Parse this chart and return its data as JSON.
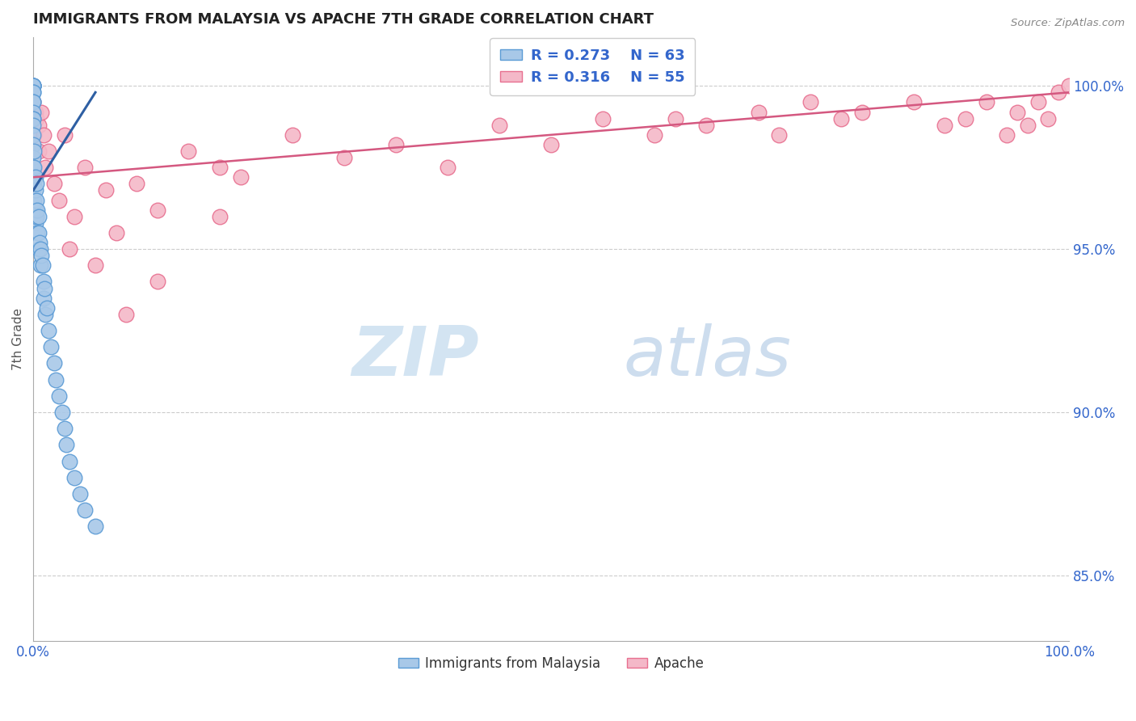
{
  "title": "IMMIGRANTS FROM MALAYSIA VS APACHE 7TH GRADE CORRELATION CHART",
  "source": "Source: ZipAtlas.com",
  "ylabel": "7th Grade",
  "ylabel_right_ticks": [
    85.0,
    90.0,
    95.0,
    100.0
  ],
  "legend_blue_r": "R = 0.273",
  "legend_blue_n": "N = 63",
  "legend_pink_r": "R = 0.316",
  "legend_pink_n": "N = 55",
  "legend_blue_label": "Immigrants from Malaysia",
  "legend_pink_label": "Apache",
  "blue_color": "#a8c8e8",
  "blue_edge": "#5b9bd5",
  "blue_line_color": "#2e5fa3",
  "pink_color": "#f4b8c8",
  "pink_edge": "#e87090",
  "pink_line_color": "#d45880",
  "blue_scatter_x": [
    0.0,
    0.0,
    0.0,
    0.0,
    0.0,
    0.0,
    0.0,
    0.0,
    0.0,
    0.0,
    0.0,
    0.0,
    0.0,
    0.0,
    0.0,
    0.0,
    0.0,
    0.0,
    0.0,
    0.0,
    0.0,
    0.0,
    0.0,
    0.1,
    0.1,
    0.1,
    0.1,
    0.1,
    0.2,
    0.2,
    0.2,
    0.2,
    0.3,
    0.3,
    0.3,
    0.4,
    0.4,
    0.5,
    0.5,
    0.5,
    0.6,
    0.7,
    0.7,
    0.8,
    0.9,
    1.0,
    1.0,
    1.1,
    1.2,
    1.3,
    1.5,
    1.7,
    2.0,
    2.2,
    2.5,
    2.8,
    3.0,
    3.2,
    3.5,
    4.0,
    4.5,
    5.0,
    6.0
  ],
  "blue_scatter_y": [
    100.0,
    100.0,
    100.0,
    100.0,
    100.0,
    99.8,
    99.8,
    99.5,
    99.5,
    99.2,
    99.0,
    99.0,
    98.8,
    98.5,
    98.2,
    97.8,
    97.5,
    97.2,
    97.0,
    97.0,
    96.8,
    96.5,
    96.2,
    98.0,
    97.5,
    97.0,
    96.5,
    96.0,
    97.2,
    96.8,
    96.2,
    95.8,
    97.0,
    96.5,
    96.0,
    96.2,
    95.5,
    96.0,
    95.5,
    95.0,
    95.2,
    95.0,
    94.5,
    94.8,
    94.5,
    94.0,
    93.5,
    93.8,
    93.0,
    93.2,
    92.5,
    92.0,
    91.5,
    91.0,
    90.5,
    90.0,
    89.5,
    89.0,
    88.5,
    88.0,
    87.5,
    87.0,
    86.5
  ],
  "pink_scatter_x": [
    0.0,
    0.0,
    0.0,
    0.1,
    0.2,
    0.3,
    0.5,
    0.5,
    0.8,
    1.0,
    1.2,
    1.5,
    2.0,
    2.5,
    3.0,
    4.0,
    5.0,
    7.0,
    8.0,
    10.0,
    12.0,
    15.0,
    18.0,
    20.0,
    25.0,
    30.0,
    35.0,
    40.0,
    45.0,
    50.0,
    55.0,
    60.0,
    62.0,
    65.0,
    70.0,
    72.0,
    75.0,
    78.0,
    80.0,
    85.0,
    88.0,
    90.0,
    92.0,
    94.0,
    95.0,
    96.0,
    97.0,
    98.0,
    99.0,
    100.0,
    3.5,
    6.0,
    9.0,
    12.0,
    18.0
  ],
  "pink_scatter_y": [
    100.0,
    99.5,
    99.0,
    98.5,
    99.2,
    99.0,
    98.8,
    98.0,
    99.2,
    98.5,
    97.5,
    98.0,
    97.0,
    96.5,
    98.5,
    96.0,
    97.5,
    96.8,
    95.5,
    97.0,
    96.2,
    98.0,
    97.5,
    97.2,
    98.5,
    97.8,
    98.2,
    97.5,
    98.8,
    98.2,
    99.0,
    98.5,
    99.0,
    98.8,
    99.2,
    98.5,
    99.5,
    99.0,
    99.2,
    99.5,
    98.8,
    99.0,
    99.5,
    98.5,
    99.2,
    98.8,
    99.5,
    99.0,
    99.8,
    100.0,
    95.0,
    94.5,
    93.0,
    94.0,
    96.0
  ],
  "blue_trend_x": [
    0.0,
    6.0
  ],
  "blue_trend_y": [
    96.8,
    99.8
  ],
  "pink_trend_x": [
    0.0,
    100.0
  ],
  "pink_trend_y": [
    97.2,
    99.8
  ],
  "xmin": 0.0,
  "xmax": 100.0,
  "ymin": 83.0,
  "ymax": 101.5
}
